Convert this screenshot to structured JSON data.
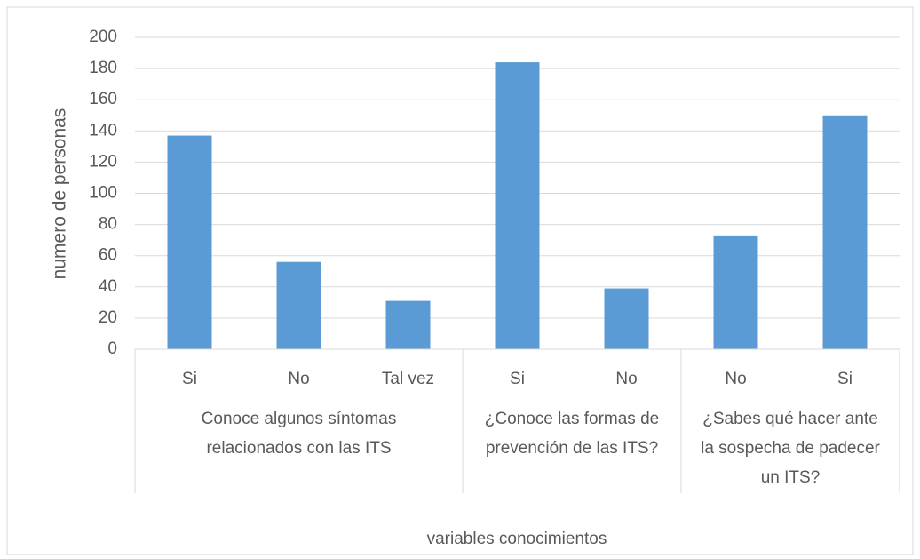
{
  "chart_data": {
    "type": "bar",
    "x_label": "variables conocimientos",
    "y_label": "numero de personas",
    "color": "#5b9bd5",
    "grid": true,
    "ylim": [
      0,
      200
    ],
    "yticks": [
      0,
      20,
      40,
      60,
      80,
      100,
      120,
      140,
      160,
      180,
      200
    ],
    "groups": [
      {
        "label": [
          "Conoce algunos síntomas",
          "relacionados con las ITS"
        ],
        "categories": [
          "Si",
          "No",
          "Tal vez"
        ],
        "values": [
          137,
          56,
          31
        ]
      },
      {
        "label": [
          "¿Conoce las formas de",
          "prevención de las ITS?"
        ],
        "categories": [
          "Si",
          "No"
        ],
        "values": [
          184,
          39
        ]
      },
      {
        "label": [
          "¿Sabes qué hacer ante",
          "la sospecha de padecer",
          "un ITS?"
        ],
        "categories": [
          "No",
          "Si"
        ],
        "values": [
          73,
          150
        ]
      }
    ]
  }
}
